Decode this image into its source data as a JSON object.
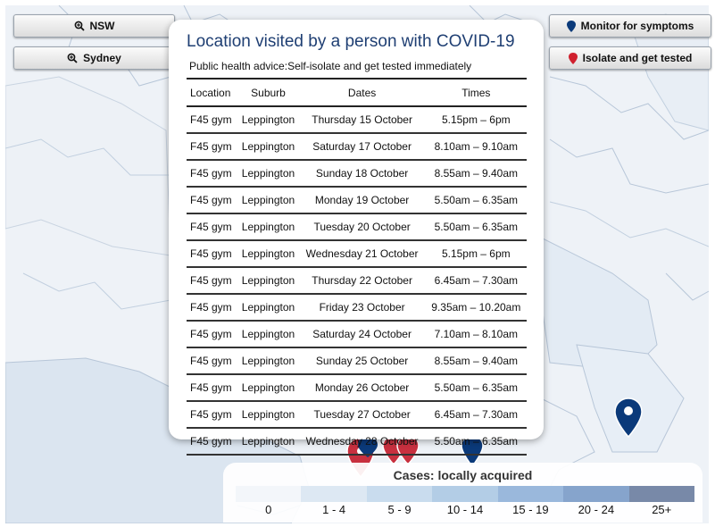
{
  "controls": {
    "nsw_label": "NSW",
    "sydney_label": "Sydney",
    "monitor_label": "Monitor for symptoms",
    "isolate_label": "Isolate and get tested"
  },
  "popup": {
    "title": "Location visited by a person with COVID-19",
    "advice": "Public health advice:Self-isolate and get tested immediately",
    "columns": [
      "Location",
      "Suburb",
      "Dates",
      "Times"
    ],
    "rows": [
      [
        "F45 gym",
        "Leppington",
        "Thursday 15 October",
        "5.15pm – 6pm"
      ],
      [
        "F45 gym",
        "Leppington",
        "Saturday 17 October",
        "8.10am – 9.10am"
      ],
      [
        "F45 gym",
        "Leppington",
        "Sunday 18 October",
        "8.55am – 9.40am"
      ],
      [
        "F45 gym",
        "Leppington",
        "Monday 19 October",
        "5.50am – 6.35am"
      ],
      [
        "F45 gym",
        "Leppington",
        "Tuesday 20 October",
        "5.50am – 6.35am"
      ],
      [
        "F45 gym",
        "Leppington",
        "Wednesday 21 October",
        "5.15pm – 6pm"
      ],
      [
        "F45 gym",
        "Leppington",
        "Thursday 22 October",
        "6.45am – 7.30am"
      ],
      [
        "F45 gym",
        "Leppington",
        "Friday 23 October",
        "9.35am – 10.20am"
      ],
      [
        "F45 gym",
        "Leppington",
        "Saturday 24 October",
        "7.10am – 8.10am"
      ],
      [
        "F45 gym",
        "Leppington",
        "Sunday 25 October",
        "8.55am – 9.40am"
      ],
      [
        "F45 gym",
        "Leppington",
        "Monday 26 October",
        "5.50am – 6.35am"
      ],
      [
        "F45 gym",
        "Leppington",
        "Tuesday 27 October",
        "6.45am – 7.30am"
      ],
      [
        "F45 gym",
        "Leppington",
        "Wednesday 28 October",
        "5.50am – 6.35am"
      ]
    ]
  },
  "legend": {
    "title": "Cases: locally acquired",
    "bins": [
      "0",
      "1 - 4",
      "5 - 9",
      "10 - 14",
      "15 - 19",
      "20 - 24",
      "25+"
    ],
    "colors": [
      "#f3f6fa",
      "#dde8f3",
      "#c9dcee",
      "#b3cde6",
      "#9ab8dc",
      "#86a4cc",
      "#7889a8"
    ]
  },
  "markers": {
    "monitor_color": "#0b3a7a",
    "isolate_color": "#c8303f",
    "isolate_icon": "map-pin-red",
    "monitor_icon": "map-pin-navy",
    "zoom_icon": "zoom-in-icon"
  }
}
